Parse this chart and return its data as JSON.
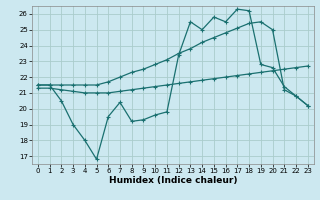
{
  "xlabel": "Humidex (Indice chaleur)",
  "bg_color": "#cce8f0",
  "grid_color": "#aacccc",
  "line_color": "#1a7070",
  "xlim": [
    -0.5,
    23.5
  ],
  "ylim": [
    16.5,
    26.5
  ],
  "xticks": [
    0,
    1,
    2,
    3,
    4,
    5,
    6,
    7,
    8,
    9,
    10,
    11,
    12,
    13,
    14,
    15,
    16,
    17,
    18,
    19,
    20,
    21,
    22,
    23
  ],
  "yticks": [
    17,
    18,
    19,
    20,
    21,
    22,
    23,
    24,
    25,
    26
  ],
  "line_upper_y": [
    21.5,
    21.5,
    21.5,
    21.5,
    21.5,
    21.5,
    21.7,
    22.0,
    22.3,
    22.5,
    22.8,
    23.1,
    23.5,
    23.8,
    24.2,
    24.5,
    24.8,
    25.1,
    25.4,
    25.5,
    25.0,
    21.2,
    20.8,
    20.2
  ],
  "line_jagged_y": [
    21.5,
    21.5,
    20.5,
    19.0,
    18.0,
    16.8,
    19.5,
    20.4,
    19.2,
    19.3,
    19.6,
    19.8,
    23.4,
    25.5,
    25.0,
    25.8,
    25.5,
    26.3,
    26.2,
    22.8,
    22.6,
    21.4,
    20.8,
    20.2
  ],
  "line_lower_y": [
    21.3,
    21.3,
    21.2,
    21.1,
    21.0,
    21.0,
    21.0,
    21.1,
    21.2,
    21.3,
    21.4,
    21.5,
    21.6,
    21.7,
    21.8,
    21.9,
    22.0,
    22.1,
    22.2,
    22.3,
    22.4,
    22.5,
    22.6,
    22.7
  ]
}
